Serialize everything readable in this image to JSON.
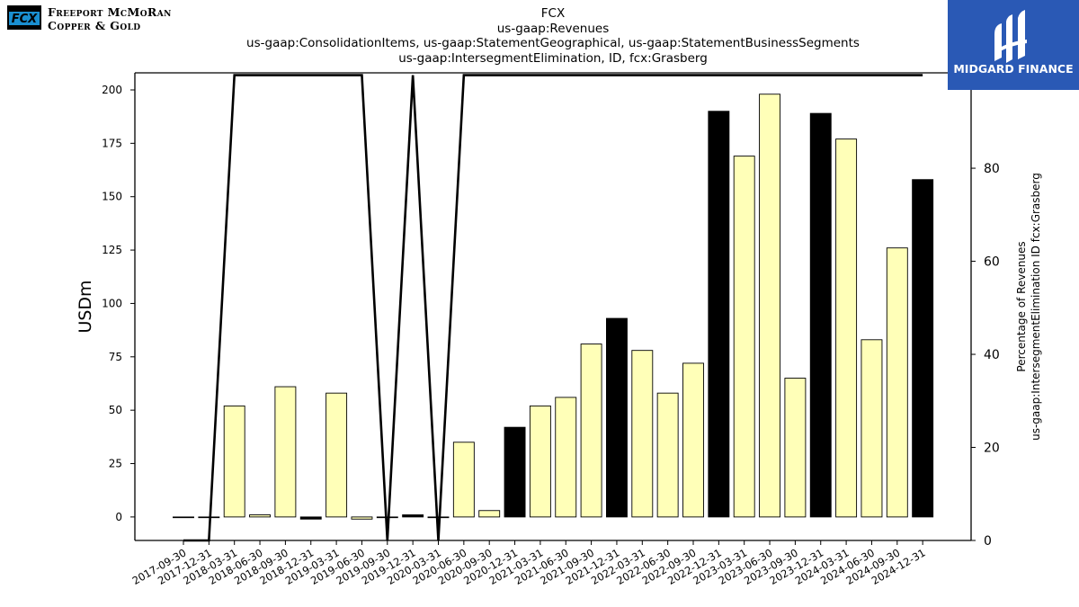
{
  "header": {
    "company": "FCX",
    "concept": "us-gaap:Revenues",
    "axes": "us-gaap:ConsolidationItems, us-gaap:StatementGeographical, us-gaap:StatementBusinessSegments",
    "members": "us-gaap:IntersegmentElimination, ID, fcx:Grasberg"
  },
  "logo_left": {
    "line1": "Freeport McMoRan",
    "line2": "Copper & Gold",
    "mark": "FCX"
  },
  "logo_right": {
    "text": "MIDGARD FINANCE"
  },
  "colors": {
    "positive_bar": "#ffffb8",
    "highlight_bar": "#000000",
    "line": "#000000",
    "brand_blue": "#2a59b5",
    "fcx_blue": "#1a8fd1"
  },
  "chart_data": {
    "type": "bar",
    "ylabel": "USDm",
    "y2label_line1": "Percentage of Revenues",
    "y2label_line2": "us-gaap:IntersegmentElimination ID fcx:Grasberg",
    "ylim": [
      -11,
      208
    ],
    "y2lim": [
      0,
      100.5
    ],
    "yticks": [
      0,
      25,
      50,
      75,
      100,
      125,
      150,
      175,
      200
    ],
    "y2ticks": [
      0,
      20,
      40,
      60,
      80,
      100
    ],
    "grid": false,
    "categories": [
      "2017-09-30",
      "2017-12-31",
      "2018-03-31",
      "2018-06-30",
      "2018-09-30",
      "2018-12-31",
      "2019-03-31",
      "2019-06-30",
      "2019-09-30",
      "2019-12-31",
      "2020-03-31",
      "2020-06-30",
      "2020-09-30",
      "2020-12-31",
      "2021-03-31",
      "2021-06-30",
      "2021-09-30",
      "2021-12-31",
      "2022-03-31",
      "2022-06-30",
      "2022-09-30",
      "2022-12-31",
      "2023-03-31",
      "2023-06-30",
      "2023-09-30",
      "2023-12-31",
      "2024-03-31",
      "2024-06-30",
      "2024-09-30",
      "2024-12-31"
    ],
    "series": [
      {
        "kind": "bar",
        "values": [
          0,
          0,
          52,
          1,
          61,
          -1,
          58,
          -1,
          0,
          1,
          0,
          35,
          3,
          42,
          52,
          56,
          81,
          93,
          78,
          58,
          72,
          190,
          169,
          198,
          65,
          189,
          177,
          83,
          126,
          158
        ],
        "highlighted": [
          false,
          false,
          false,
          false,
          false,
          true,
          false,
          false,
          false,
          true,
          false,
          false,
          false,
          true,
          false,
          false,
          false,
          true,
          false,
          false,
          false,
          true,
          false,
          false,
          false,
          true,
          false,
          false,
          false,
          true
        ]
      },
      {
        "kind": "line",
        "axis": "right",
        "values": [
          0,
          0,
          100,
          100,
          100,
          100,
          100,
          100,
          0,
          100,
          0,
          100,
          100,
          100,
          100,
          100,
          100,
          100,
          100,
          100,
          100,
          100,
          100,
          100,
          100,
          100,
          100,
          100,
          100,
          100
        ]
      }
    ]
  }
}
